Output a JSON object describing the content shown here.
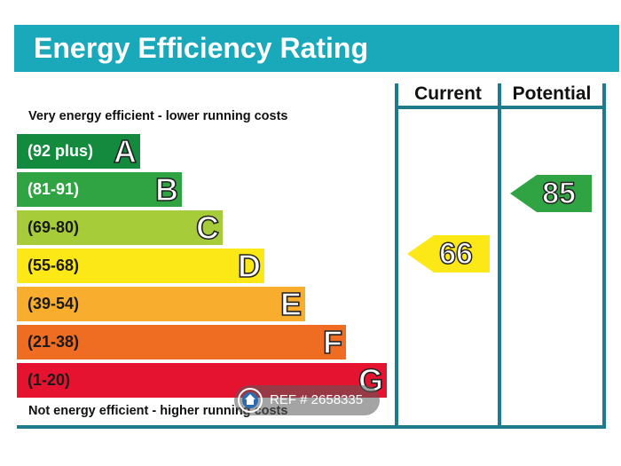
{
  "title": "Energy Efficiency Rating",
  "columns": {
    "current": "Current",
    "potential": "Potential"
  },
  "notes": {
    "top": "Very energy efficient - lower running costs",
    "bottom": "Not energy efficient - higher running costs"
  },
  "bands": [
    {
      "range": "(92 plus)",
      "letter": "A",
      "color": "#138a3d",
      "text_color": "#ffffff"
    },
    {
      "range": "(81-91)",
      "letter": "B",
      "color": "#30a343",
      "text_color": "#ffffff"
    },
    {
      "range": "(69-80)",
      "letter": "C",
      "color": "#a6cc3a",
      "text_color": "#1a1a1a"
    },
    {
      "range": "(55-68)",
      "letter": "D",
      "color": "#fde817",
      "text_color": "#1a1a1a"
    },
    {
      "range": "(39-54)",
      "letter": "E",
      "color": "#f9ad2e",
      "text_color": "#1a1a1a"
    },
    {
      "range": "(21-38)",
      "letter": "F",
      "color": "#ef6c23",
      "text_color": "#1a1a1a"
    },
    {
      "range": "(1-20)",
      "letter": "G",
      "color": "#e5132f",
      "text_color": "#1a1a1a"
    }
  ],
  "ratings": {
    "current": {
      "value": "66",
      "band": "D",
      "color": "#fde817"
    },
    "potential": {
      "value": "85",
      "band": "B",
      "color": "#30a343"
    }
  },
  "watermark": {
    "text": "REF # 2658335",
    "icon": "house-logo-icon"
  }
}
